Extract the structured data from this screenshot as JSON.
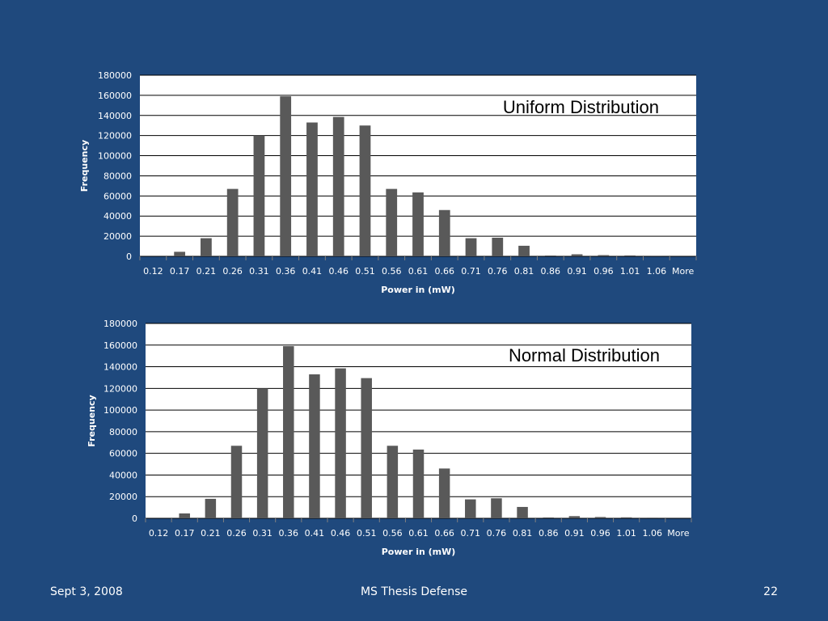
{
  "footer": {
    "date": "Sept 3, 2008",
    "title": "MS Thesis Defense",
    "page_number": "22"
  },
  "colors": {
    "slide_background": "#1f497d",
    "plot_background": "#ffffff",
    "bar_color": "#595959",
    "gridline_color": "#000000"
  },
  "chart_data": [
    {
      "type": "bar",
      "title": "Uniform Distribution",
      "xlabel": "Power in (mW)",
      "ylabel": "Frequency",
      "ylim": [
        0,
        180000
      ],
      "yticks": [
        0,
        20000,
        40000,
        60000,
        80000,
        100000,
        120000,
        140000,
        160000,
        180000
      ],
      "grid": true,
      "legend": "none",
      "categories": [
        "0.12",
        "0.17",
        "0.21",
        "0.26",
        "0.31",
        "0.36",
        "0.41",
        "0.46",
        "0.51",
        "0.56",
        "0.61",
        "0.66",
        "0.71",
        "0.76",
        "0.81",
        "0.86",
        "0.91",
        "0.96",
        "1.01",
        "1.06",
        "More"
      ],
      "values": [
        0,
        4500,
        18000,
        67000,
        120000,
        159000,
        133000,
        138500,
        130000,
        67000,
        63500,
        46000,
        18000,
        18500,
        10500,
        800,
        2000,
        1200,
        900,
        600,
        0
      ]
    },
    {
      "type": "bar",
      "title": "Normal Distribution",
      "xlabel": "Power in (mW)",
      "ylabel": "Frequency",
      "ylim": [
        0,
        180000
      ],
      "yticks": [
        0,
        20000,
        40000,
        60000,
        80000,
        100000,
        120000,
        140000,
        160000,
        180000
      ],
      "grid": true,
      "legend": "none",
      "categories": [
        "0.12",
        "0.17",
        "0.21",
        "0.26",
        "0.31",
        "0.36",
        "0.41",
        "0.46",
        "0.51",
        "0.56",
        "0.61",
        "0.66",
        "0.71",
        "0.76",
        "0.81",
        "0.86",
        "0.91",
        "0.96",
        "1.01",
        "1.06",
        "More"
      ],
      "values": [
        0,
        4500,
        18000,
        67000,
        120000,
        159000,
        133000,
        138500,
        129500,
        67000,
        63500,
        46000,
        17500,
        18500,
        10500,
        800,
        2000,
        1200,
        900,
        600,
        0
      ]
    }
  ]
}
